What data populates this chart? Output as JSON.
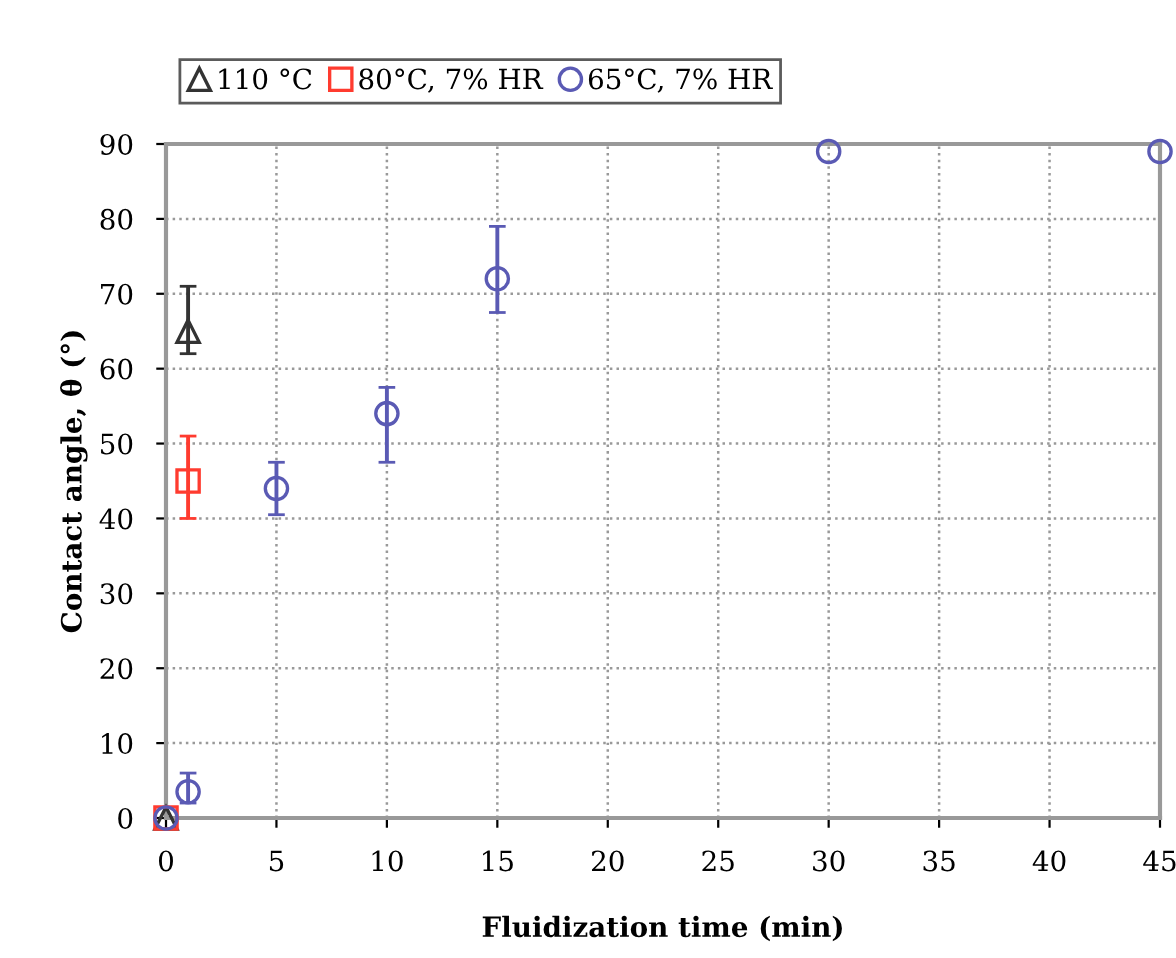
{
  "chart_data": {
    "type": "scatter",
    "xlabel": "Fluidization time (min)",
    "ylabel": "Contact angle, θ (°)",
    "xlim": [
      0,
      45
    ],
    "xticks": [
      0,
      5,
      10,
      15,
      20,
      25,
      30,
      35,
      40,
      45
    ],
    "ylim": [
      0,
      90
    ],
    "yticks": [
      0,
      10,
      20,
      30,
      40,
      50,
      60,
      70,
      80,
      90
    ],
    "grid": true,
    "legend": "top",
    "line_style": "dotted",
    "series": [
      {
        "name": "110 °C",
        "color": "#333333",
        "marker": "triangle",
        "x": [
          0,
          1
        ],
        "values": [
          0,
          65
        ],
        "errors": [
          null,
          [
            62,
            71
          ]
        ]
      },
      {
        "name": "80°C, 7% HR",
        "color": "#ff3b2f",
        "marker": "square",
        "x": [
          0,
          1
        ],
        "values": [
          0,
          45
        ],
        "errors": [
          null,
          [
            40,
            51
          ]
        ]
      },
      {
        "name": "65°C, 7% HR",
        "color": "#5a5ab4",
        "marker": "circle",
        "x": [
          0,
          1,
          5,
          10,
          15,
          30,
          45
        ],
        "values": [
          0,
          3.5,
          44,
          54,
          72,
          89,
          89
        ],
        "errors": [
          null,
          [
            2,
            6
          ],
          [
            40.5,
            47.5
          ],
          [
            47.5,
            57.5
          ],
          [
            67.5,
            79
          ],
          null,
          null
        ]
      }
    ]
  }
}
